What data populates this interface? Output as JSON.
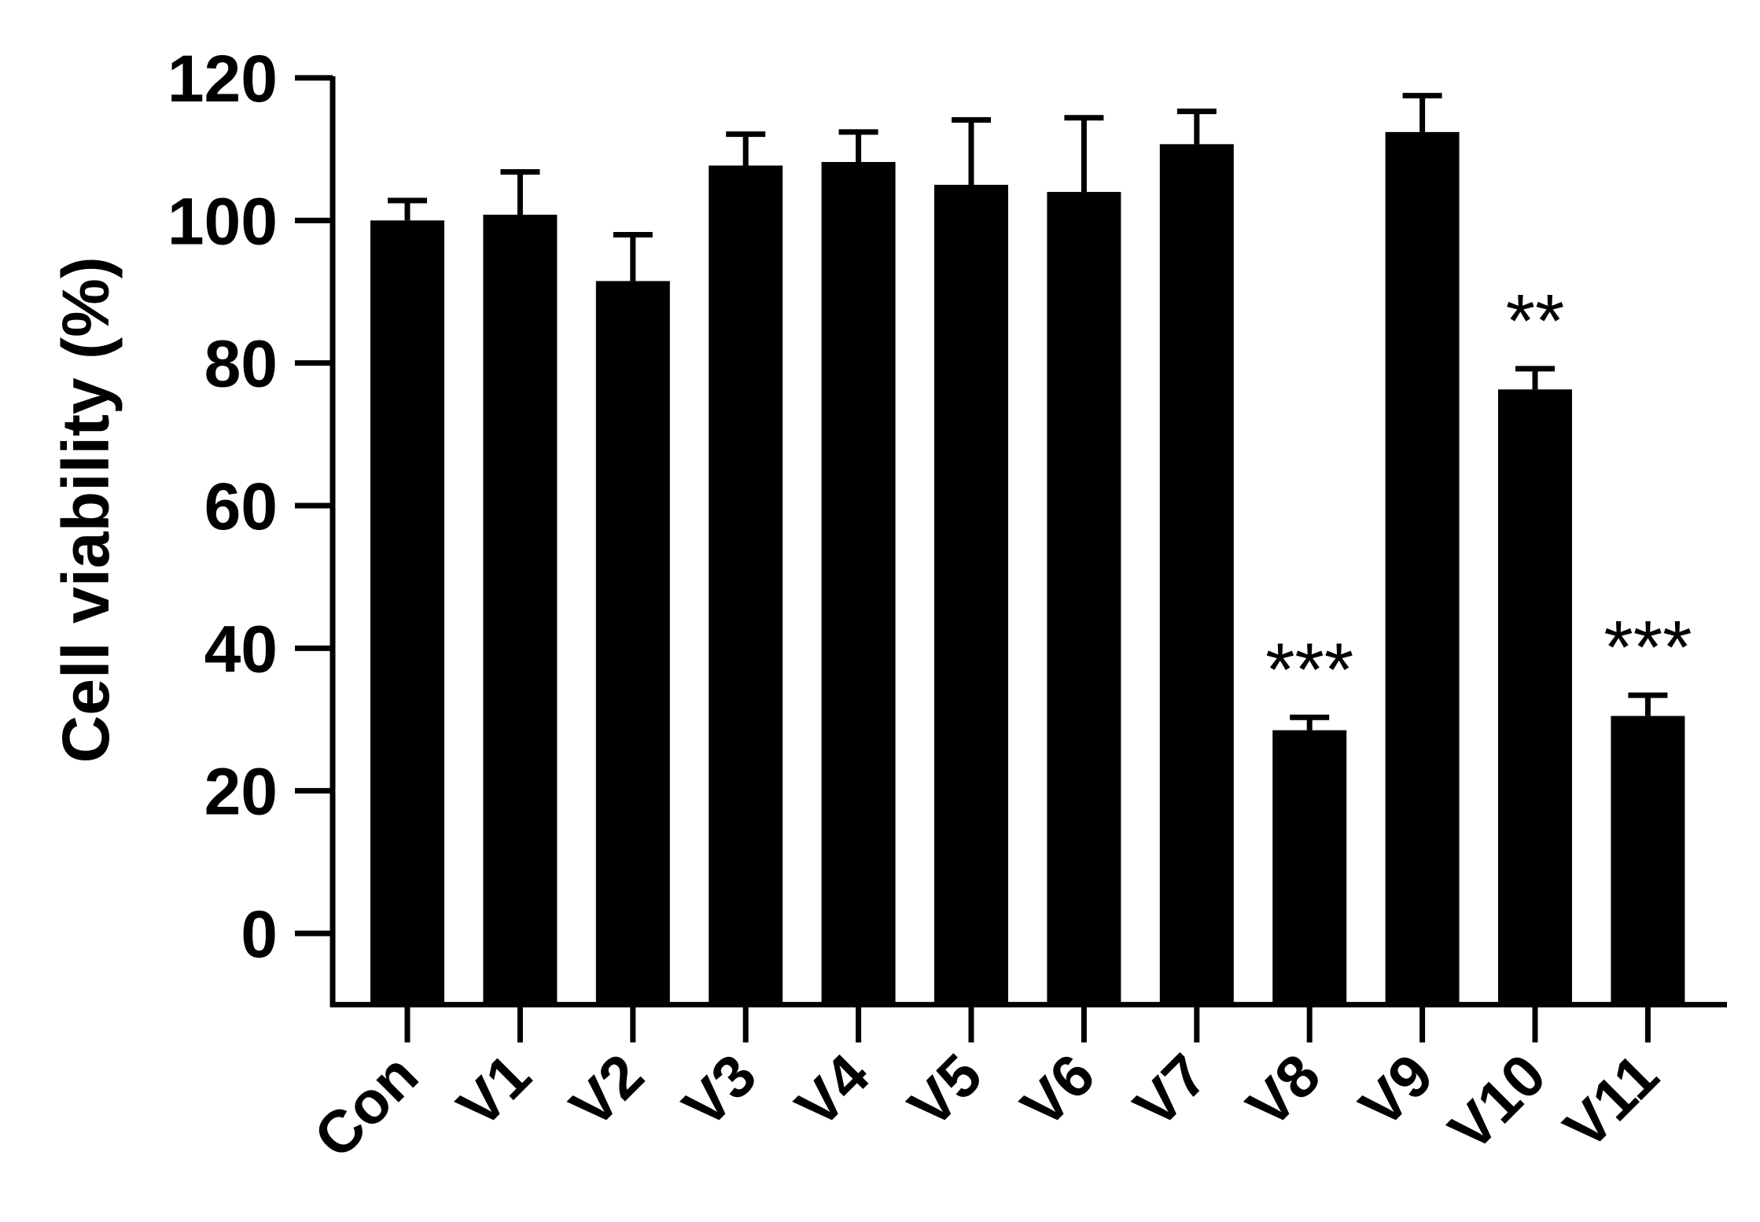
{
  "chart_data": {
    "type": "bar",
    "categories": [
      "Con",
      "V1",
      "V2",
      "V3",
      "V4",
      "V5",
      "V6",
      "V7",
      "V8",
      "V9",
      "V10",
      "V11"
    ],
    "values": [
      100,
      100.8,
      91.5,
      107.7,
      108.2,
      105,
      104,
      110.7,
      28.5,
      112.4,
      76.3,
      30.5
    ],
    "error": [
      2.8,
      6.0,
      6.5,
      4.4,
      4.2,
      9.1,
      10.4,
      4.6,
      1.8,
      5.1,
      2.9,
      2.9
    ],
    "annotations": [
      "",
      "",
      "",
      "",
      "",
      "",
      "",
      "",
      "***",
      "",
      "**",
      "***"
    ],
    "title": "",
    "xlabel": "",
    "ylabel": "Cell viability (%)",
    "ylim": [
      -10,
      120
    ],
    "yticks": [
      0,
      20,
      40,
      60,
      80,
      100,
      120
    ],
    "bar_color": "#000000",
    "grid": false,
    "legend": "none"
  }
}
